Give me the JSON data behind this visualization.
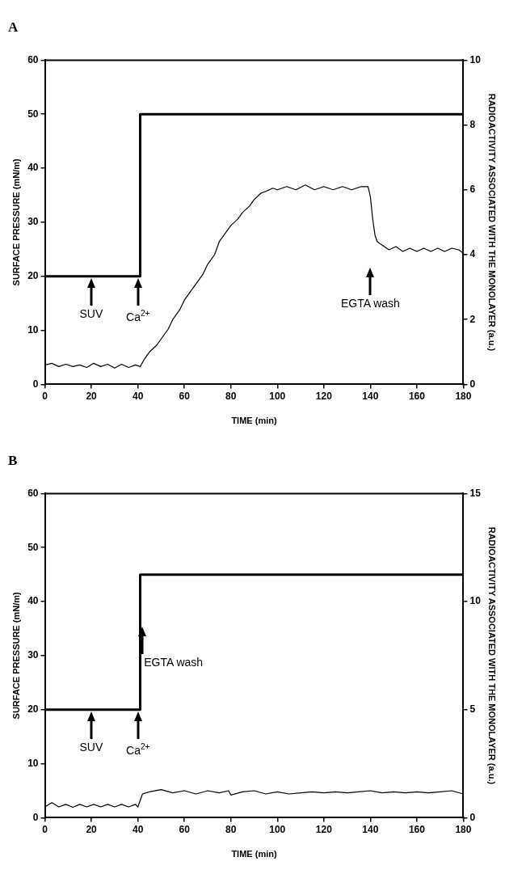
{
  "chart_data": [
    {
      "type": "line",
      "title": "A",
      "xlabel": "TIME (min)",
      "ylabel": "SURFACE PRESSURE (mN/m)",
      "y2label": "RADIOACTIVITY ASSOCIATED WITH THE MONOLAYER (a.u.)",
      "xlim": [
        0,
        180
      ],
      "xticks": [
        0,
        20,
        40,
        60,
        80,
        100,
        120,
        140,
        160,
        180
      ],
      "ylim": [
        0,
        60
      ],
      "yticks": [
        0,
        10,
        20,
        30,
        40,
        50,
        60
      ],
      "y2lim": [
        0,
        10
      ],
      "y2ticks": [
        0,
        2,
        4,
        6,
        8,
        10
      ],
      "grid": false,
      "legend": false,
      "marker": "none",
      "line_style": "solid",
      "series": [
        {
          "type": "step",
          "color": "#000000",
          "x": [
            0,
            41,
            180
          ],
          "values": [
            20,
            50,
            50
          ]
        },
        {
          "type": "line",
          "axis": "y2",
          "color": "#000000",
          "x": [
            0,
            3,
            6,
            9,
            12,
            15,
            18,
            21,
            24,
            27,
            30,
            33,
            36,
            39,
            41,
            43,
            45,
            48,
            50,
            53,
            55,
            58,
            60,
            63,
            65,
            68,
            70,
            73,
            75,
            78,
            80,
            83,
            85,
            88,
            90,
            93,
            95,
            98,
            100,
            104,
            108,
            112,
            116,
            120,
            124,
            128,
            132,
            136,
            139,
            140,
            141,
            142,
            143,
            145,
            148,
            151,
            154,
            157,
            160,
            163,
            166,
            169,
            172,
            175,
            178,
            180
          ],
          "values": [
            0.6,
            0.65,
            0.55,
            0.62,
            0.55,
            0.6,
            0.52,
            0.65,
            0.55,
            0.62,
            0.5,
            0.62,
            0.52,
            0.6,
            0.55,
            0.8,
            1.0,
            1.2,
            1.4,
            1.7,
            2.0,
            2.3,
            2.6,
            2.9,
            3.1,
            3.4,
            3.7,
            4.0,
            4.4,
            4.7,
            4.9,
            5.1,
            5.3,
            5.5,
            5.7,
            5.9,
            5.95,
            6.05,
            6.0,
            6.1,
            6.0,
            6.15,
            6.0,
            6.1,
            6.0,
            6.1,
            6.0,
            6.1,
            6.1,
            5.8,
            5.1,
            4.6,
            4.4,
            4.3,
            4.15,
            4.25,
            4.1,
            4.2,
            4.1,
            4.2,
            4.1,
            4.2,
            4.1,
            4.2,
            4.15,
            4.05
          ]
        }
      ],
      "annotations": [
        "SUV",
        "Ca$^{2+}$",
        "EGTA wash"
      ]
    },
    {
      "type": "line",
      "title": "B",
      "xlabel": "TIME (min)",
      "ylabel": "SURFACE PRESSURE (mN/m)",
      "y2label": "RADIOACTIVITY ASSOCIATED WITH THE MONOLAYER (a.u.)",
      "xlim": [
        0,
        180
      ],
      "xticks": [
        0,
        20,
        40,
        60,
        80,
        100,
        120,
        140,
        160,
        180
      ],
      "ylim": [
        0,
        60
      ],
      "yticks": [
        0,
        10,
        20,
        30,
        40,
        50,
        60
      ],
      "y2lim": [
        0,
        15
      ],
      "y2ticks": [
        0,
        5,
        10,
        15
      ],
      "grid": false,
      "legend": false,
      "marker": "none",
      "line_style": "solid",
      "series": [
        {
          "type": "step",
          "color": "#000000",
          "x": [
            0,
            41,
            180
          ],
          "values": [
            20,
            45,
            45
          ]
        },
        {
          "type": "line",
          "axis": "y2",
          "color": "#000000",
          "x": [
            0,
            3,
            6,
            9,
            12,
            15,
            18,
            21,
            24,
            27,
            30,
            33,
            36,
            39,
            40,
            42,
            45,
            50,
            55,
            60,
            65,
            70,
            75,
            79,
            80,
            85,
            90,
            95,
            100,
            105,
            110,
            115,
            120,
            125,
            130,
            135,
            140,
            145,
            150,
            155,
            160,
            165,
            170,
            175,
            180
          ],
          "values": [
            0.5,
            0.7,
            0.5,
            0.62,
            0.48,
            0.62,
            0.5,
            0.62,
            0.5,
            0.62,
            0.5,
            0.62,
            0.5,
            0.62,
            0.5,
            1.1,
            1.2,
            1.3,
            1.15,
            1.25,
            1.1,
            1.25,
            1.15,
            1.25,
            1.05,
            1.2,
            1.25,
            1.1,
            1.2,
            1.1,
            1.15,
            1.2,
            1.15,
            1.2,
            1.15,
            1.2,
            1.25,
            1.15,
            1.2,
            1.15,
            1.2,
            1.15,
            1.2,
            1.25,
            1.1
          ]
        }
      ],
      "annotations": [
        "SUV",
        "Ca$^{2+}$",
        "EGTA wash"
      ]
    }
  ]
}
